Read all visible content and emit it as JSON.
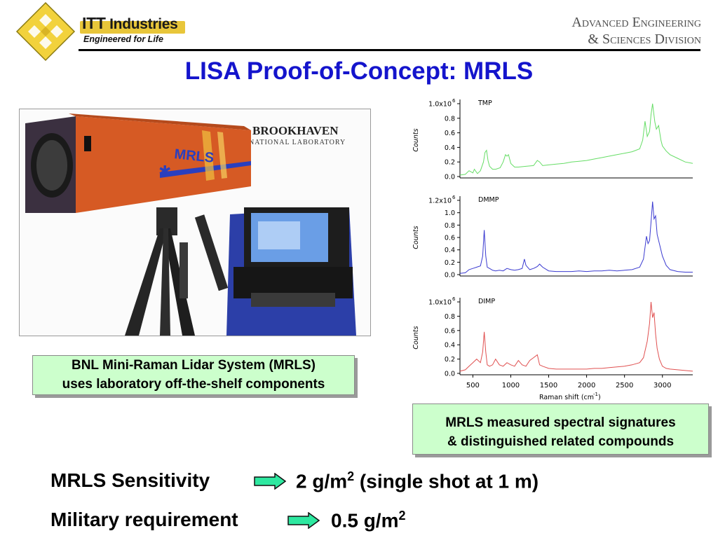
{
  "header": {
    "brand_itt": "ITT",
    "brand_industries": "Industries",
    "tagline": "Engineered for Life",
    "division_line1": "Advanced Engineering",
    "division_line2": "& Sciences Division"
  },
  "title": "LISA Proof-of-Concept:  MRLS",
  "photo": {
    "device_label": "MRLS",
    "lab_name": "BROOKHAVEN",
    "lab_subtitle": "NATIONAL LABORATORY"
  },
  "photo_caption": {
    "line1": "BNL Mini-Raman Lidar System (MRLS)",
    "line2": "uses laboratory off-the-shelf components"
  },
  "chart_caption": {
    "line1": "MRLS measured spectral signatures",
    "line2": "& distinguished related compounds"
  },
  "sensitivity": {
    "label": "MRLS Sensitivity",
    "value": "2 g/m",
    "sup": "2",
    "note": " (single shot at 1 m)"
  },
  "requirement": {
    "label": "Military requirement",
    "value": "0.5 g/m",
    "sup": "2"
  },
  "colors": {
    "title": "#1414cc",
    "caption_fill": "#ccffcc",
    "tmp": "#66dd66",
    "dmmp": "#3a3ad0",
    "dimp": "#e05050",
    "arrow": "#2ee8a0"
  },
  "chart_data": [
    {
      "type": "line",
      "label": "TMP",
      "ylabel": "Counts",
      "ymax_label_base": "1.0x10",
      "ymax_label_exp": "6",
      "yticks": [
        "0.0",
        "0.2",
        "0.4",
        "0.6",
        "0.8"
      ],
      "ylim": [
        0,
        1.0
      ],
      "xlim": [
        330,
        3400
      ],
      "color": "#66dd66",
      "series": [
        {
          "x": [
            330,
            400,
            450,
            500,
            520,
            560,
            600,
            640,
            660,
            680,
            700,
            720,
            760,
            800,
            860,
            900,
            930,
            950,
            970,
            1000,
            1050,
            1100,
            1200,
            1300,
            1350,
            1380,
            1420,
            1500,
            1600,
            1700,
            1800,
            1900,
            2000,
            2100,
            2200,
            2300,
            2400,
            2500,
            2600,
            2700,
            2740,
            2770,
            2800,
            2830,
            2850,
            2870,
            2900,
            2920,
            2950,
            2980,
            3000,
            3050,
            3100,
            3200,
            3300,
            3400
          ],
          "y": [
            0.02,
            0.03,
            0.08,
            0.05,
            0.1,
            0.04,
            0.08,
            0.2,
            0.33,
            0.36,
            0.22,
            0.14,
            0.1,
            0.1,
            0.12,
            0.2,
            0.3,
            0.28,
            0.3,
            0.18,
            0.13,
            0.13,
            0.14,
            0.15,
            0.22,
            0.2,
            0.15,
            0.16,
            0.17,
            0.18,
            0.2,
            0.21,
            0.22,
            0.24,
            0.26,
            0.28,
            0.3,
            0.32,
            0.34,
            0.38,
            0.5,
            0.76,
            0.55,
            0.62,
            0.85,
            1.0,
            0.75,
            0.65,
            0.7,
            0.5,
            0.42,
            0.35,
            0.3,
            0.25,
            0.2,
            0.18
          ]
        }
      ]
    },
    {
      "type": "line",
      "label": "DMMP",
      "ylabel": "Counts",
      "ymax_label_base": "1.2x10",
      "ymax_label_exp": "6",
      "yticks": [
        "0.0",
        "0.2",
        "0.4",
        "0.6",
        "0.8",
        "1.0"
      ],
      "ylim": [
        0,
        1.2
      ],
      "xlim": [
        330,
        3400
      ],
      "color": "#3a3ad0",
      "series": [
        {
          "x": [
            330,
            400,
            450,
            500,
            550,
            600,
            630,
            650,
            670,
            690,
            720,
            760,
            800,
            850,
            900,
            950,
            1000,
            1050,
            1100,
            1150,
            1180,
            1200,
            1250,
            1300,
            1350,
            1380,
            1420,
            1500,
            1600,
            1700,
            1800,
            1900,
            2000,
            2100,
            2200,
            2300,
            2400,
            2500,
            2600,
            2700,
            2750,
            2790,
            2810,
            2830,
            2850,
            2870,
            2890,
            2910,
            2930,
            2960,
            3000,
            3050,
            3100,
            3200,
            3300,
            3400
          ],
          "y": [
            0.02,
            0.03,
            0.08,
            0.1,
            0.12,
            0.14,
            0.3,
            0.72,
            0.3,
            0.12,
            0.1,
            0.07,
            0.06,
            0.07,
            0.06,
            0.1,
            0.08,
            0.07,
            0.08,
            0.1,
            0.25,
            0.15,
            0.08,
            0.1,
            0.13,
            0.17,
            0.12,
            0.06,
            0.05,
            0.05,
            0.05,
            0.06,
            0.05,
            0.06,
            0.06,
            0.07,
            0.06,
            0.07,
            0.08,
            0.12,
            0.25,
            0.62,
            0.5,
            0.55,
            0.85,
            1.18,
            0.9,
            0.95,
            0.65,
            0.5,
            0.3,
            0.15,
            0.08,
            0.05,
            0.04,
            0.04
          ]
        }
      ]
    },
    {
      "type": "line",
      "label": "DIMP",
      "ylabel": "Counts",
      "ymax_label_base": "1.0x10",
      "ymax_label_exp": "6",
      "yticks": [
        "0.0",
        "0.2",
        "0.4",
        "0.6",
        "0.8"
      ],
      "ylim": [
        0,
        1.0
      ],
      "xlim": [
        330,
        3400
      ],
      "color": "#e05050",
      "xticks": [
        500,
        1000,
        1500,
        2000,
        2500,
        3000
      ],
      "xlabel": "Raman shift (cm",
      "xlabel_sup": "-1",
      "xlabel_tail": ")",
      "series": [
        {
          "x": [
            330,
            400,
            450,
            500,
            550,
            600,
            630,
            650,
            670,
            690,
            720,
            760,
            800,
            850,
            900,
            950,
            1000,
            1050,
            1100,
            1150,
            1200,
            1250,
            1300,
            1350,
            1380,
            1420,
            1500,
            1600,
            1700,
            1800,
            1900,
            2000,
            2100,
            2200,
            2300,
            2400,
            2500,
            2600,
            2700,
            2750,
            2800,
            2830,
            2850,
            2870,
            2890,
            2910,
            2930,
            2960,
            3000,
            3050,
            3100,
            3200,
            3300,
            3400
          ],
          "y": [
            0.03,
            0.05,
            0.1,
            0.15,
            0.2,
            0.15,
            0.3,
            0.58,
            0.3,
            0.12,
            0.1,
            0.12,
            0.2,
            0.12,
            0.1,
            0.15,
            0.12,
            0.1,
            0.18,
            0.12,
            0.1,
            0.18,
            0.22,
            0.26,
            0.12,
            0.1,
            0.07,
            0.06,
            0.06,
            0.06,
            0.06,
            0.06,
            0.07,
            0.07,
            0.08,
            0.09,
            0.1,
            0.12,
            0.15,
            0.22,
            0.45,
            0.7,
            1.0,
            0.78,
            0.85,
            0.55,
            0.35,
            0.2,
            0.1,
            0.07,
            0.06,
            0.05,
            0.04,
            0.03
          ]
        }
      ]
    }
  ]
}
